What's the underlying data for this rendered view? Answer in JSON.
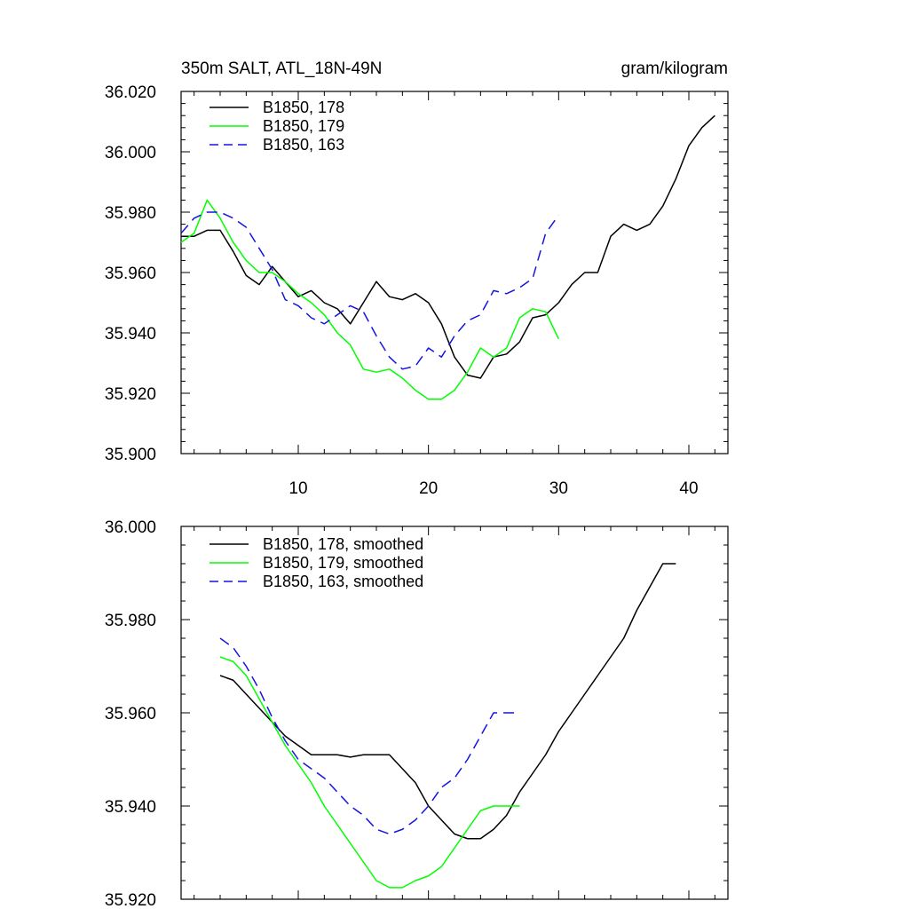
{
  "chart_data": [
    {
      "type": "line",
      "title": "350m SALT, ATL_18N-49N",
      "units": "gram/kilogram",
      "xlabel": "",
      "ylabel": "",
      "xlim": [
        1,
        43
      ],
      "ylim": [
        35.9,
        36.02
      ],
      "yticks": [
        "35.900",
        "35.920",
        "35.940",
        "35.960",
        "35.980",
        "36.000",
        "36.020"
      ],
      "xticks": [
        "10",
        "20",
        "30",
        "40"
      ],
      "legend_position": "top-left",
      "series": [
        {
          "name": "B1850, 178",
          "color": "#000000",
          "dash": "solid",
          "x": [
            1,
            2,
            3,
            4,
            5,
            6,
            7,
            8,
            9,
            10,
            11,
            12,
            13,
            14,
            15,
            16,
            17,
            18,
            19,
            20,
            21,
            22,
            23,
            24,
            25,
            26,
            27,
            28,
            29,
            30,
            31,
            32,
            33,
            34,
            35,
            36,
            37,
            38,
            39,
            40,
            41,
            42
          ],
          "y": [
            35.972,
            35.972,
            35.974,
            35.974,
            35.967,
            35.959,
            35.956,
            35.962,
            35.957,
            35.952,
            35.954,
            35.95,
            35.948,
            35.943,
            35.95,
            35.957,
            35.952,
            35.951,
            35.953,
            35.95,
            35.943,
            35.932,
            35.926,
            35.925,
            35.932,
            35.933,
            35.937,
            35.945,
            35.946,
            35.95,
            35.956,
            35.96,
            35.96,
            35.972,
            35.976,
            35.974,
            35.976,
            35.982,
            35.991,
            36.002,
            36.008,
            36.012
          ]
        },
        {
          "name": "B1850, 179",
          "color": "#00ff00",
          "dash": "solid",
          "x": [
            1,
            2,
            3,
            4,
            5,
            6,
            7,
            8,
            9,
            10,
            11,
            12,
            13,
            14,
            15,
            16,
            17,
            18,
            19,
            20,
            21,
            22,
            23,
            24,
            25,
            26,
            27,
            28,
            29,
            30
          ],
          "y": [
            35.97,
            35.973,
            35.984,
            35.978,
            35.97,
            35.964,
            35.96,
            35.96,
            35.957,
            35.953,
            35.95,
            35.946,
            35.94,
            35.936,
            35.928,
            35.927,
            35.928,
            35.925,
            35.921,
            35.918,
            35.918,
            35.921,
            35.927,
            35.935,
            35.932,
            35.935,
            35.945,
            35.948,
            35.947,
            35.938
          ]
        },
        {
          "name": "B1850, 163",
          "color": "#1515e0",
          "dash": "dashed",
          "x": [
            1,
            2,
            3,
            4,
            5,
            6,
            7,
            8,
            9,
            10,
            11,
            12,
            13,
            14,
            15,
            16,
            17,
            18,
            19,
            20,
            21,
            22,
            23,
            24,
            25,
            26,
            27,
            28,
            29,
            30
          ],
          "y": [
            35.973,
            35.978,
            35.98,
            35.98,
            35.978,
            35.975,
            35.968,
            35.961,
            35.951,
            35.949,
            35.945,
            35.943,
            35.946,
            35.949,
            35.947,
            35.939,
            35.932,
            35.928,
            35.929,
            35.935,
            35.932,
            35.939,
            35.944,
            35.946,
            35.954,
            35.953,
            35.955,
            35.958,
            35.973,
            35.979
          ]
        }
      ]
    },
    {
      "type": "line",
      "title": "",
      "xlabel": "",
      "ylabel": "",
      "xlim": [
        1,
        43
      ],
      "ylim": [
        35.92,
        36.0
      ],
      "yticks": [
        "35.920",
        "35.940",
        "35.960",
        "35.980",
        "36.000"
      ],
      "legend_position": "top-left",
      "series": [
        {
          "name": "B1850, 178, smoothed",
          "color": "#000000",
          "dash": "solid",
          "x": [
            4,
            5,
            6,
            7,
            8,
            9,
            10,
            11,
            12,
            13,
            14,
            15,
            16,
            17,
            18,
            19,
            20,
            21,
            22,
            23,
            24,
            25,
            26,
            27,
            28,
            29,
            30,
            31,
            32,
            33,
            34,
            35,
            36,
            37,
            38,
            39
          ],
          "y": [
            35.968,
            35.967,
            35.964,
            35.961,
            35.958,
            35.955,
            35.953,
            35.951,
            35.951,
            35.951,
            35.9505,
            35.951,
            35.951,
            35.951,
            35.948,
            35.945,
            35.94,
            35.937,
            35.934,
            35.933,
            35.933,
            35.935,
            35.938,
            35.943,
            35.947,
            35.951,
            35.956,
            35.96,
            35.964,
            35.968,
            35.972,
            35.976,
            35.982,
            35.987,
            35.992,
            35.992
          ]
        },
        {
          "name": "B1850, 179, smoothed",
          "color": "#00ff00",
          "dash": "solid",
          "x": [
            4,
            5,
            6,
            7,
            8,
            9,
            10,
            11,
            12,
            13,
            14,
            15,
            16,
            17,
            18,
            19,
            20,
            21,
            22,
            23,
            24,
            25,
            26,
            27
          ],
          "y": [
            35.972,
            35.971,
            35.968,
            35.963,
            35.958,
            35.953,
            35.949,
            35.945,
            35.94,
            35.936,
            35.932,
            35.928,
            35.924,
            35.9225,
            35.9225,
            35.924,
            35.925,
            35.927,
            35.931,
            35.935,
            35.939,
            35.94,
            35.94,
            35.94
          ]
        },
        {
          "name": "B1850, 163, smoothed",
          "color": "#1515e0",
          "dash": "dashed",
          "x": [
            4,
            5,
            6,
            7,
            8,
            9,
            10,
            11,
            12,
            13,
            14,
            15,
            16,
            17,
            18,
            19,
            20,
            21,
            22,
            23,
            24,
            25,
            26,
            27
          ],
          "y": [
            35.976,
            35.974,
            35.97,
            35.965,
            35.959,
            35.954,
            35.95,
            35.948,
            35.946,
            35.943,
            35.94,
            35.938,
            35.935,
            35.934,
            35.935,
            35.937,
            35.94,
            35.944,
            35.946,
            35.95,
            35.955,
            35.96,
            35.96,
            35.96
          ]
        }
      ]
    }
  ]
}
